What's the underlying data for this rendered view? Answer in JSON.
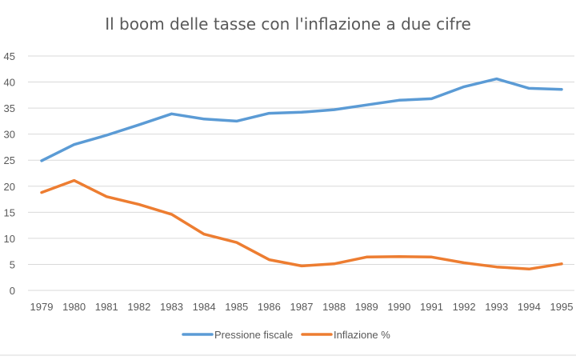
{
  "chart_data": {
    "type": "line",
    "title": "Il boom delle tasse con l'inflazione a due cifre",
    "xlabel": "",
    "ylabel": "",
    "ylim": [
      0,
      45
    ],
    "yticks": [
      0,
      5,
      10,
      15,
      20,
      25,
      30,
      35,
      40,
      45
    ],
    "grid": true,
    "legend_position": "bottom",
    "x": [
      "1979",
      "1980",
      "1981",
      "1982",
      "1983",
      "1984",
      "1985",
      "1986",
      "1987",
      "1988",
      "1989",
      "1990",
      "1991",
      "1992",
      "1993",
      "1994",
      "1995"
    ],
    "series": [
      {
        "name": "Pressione fiscale",
        "color": "#5b9bd5",
        "values": [
          24.9,
          28.0,
          29.8,
          31.8,
          33.9,
          32.9,
          32.5,
          34.0,
          34.2,
          34.7,
          35.6,
          36.5,
          36.8,
          39.1,
          40.6,
          38.8,
          38.6
        ]
      },
      {
        "name": "Inflazione %",
        "color": "#ed7d31",
        "values": [
          18.8,
          21.1,
          18.0,
          16.5,
          14.6,
          10.8,
          9.2,
          5.9,
          4.7,
          5.1,
          6.4,
          6.5,
          6.4,
          5.3,
          4.5,
          4.1,
          5.1
        ]
      }
    ]
  }
}
